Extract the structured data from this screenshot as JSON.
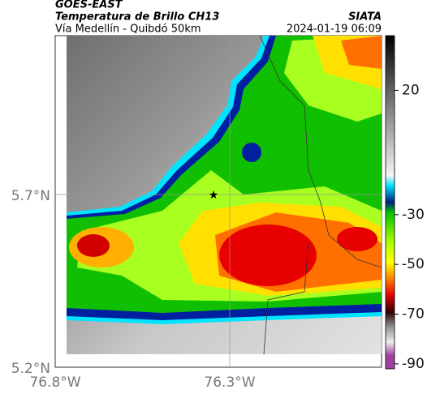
{
  "header": {
    "title": "GOES-EAST",
    "subtitle": "Temperatura de Brillo CH13",
    "source": "SIATA",
    "region": "Vía Medellín - Quibdó 50km",
    "timestamp": "2024-01-19 06:09"
  },
  "map": {
    "lat_labels": [
      "5.7°N",
      "5.2°N"
    ],
    "lon_labels": [
      "76.8°W",
      "76.3°W"
    ]
  },
  "colorbar": {
    "clim": [
      -92,
      42
    ],
    "ticks": [
      20,
      -30,
      -50,
      -70,
      -90
    ]
  }
}
